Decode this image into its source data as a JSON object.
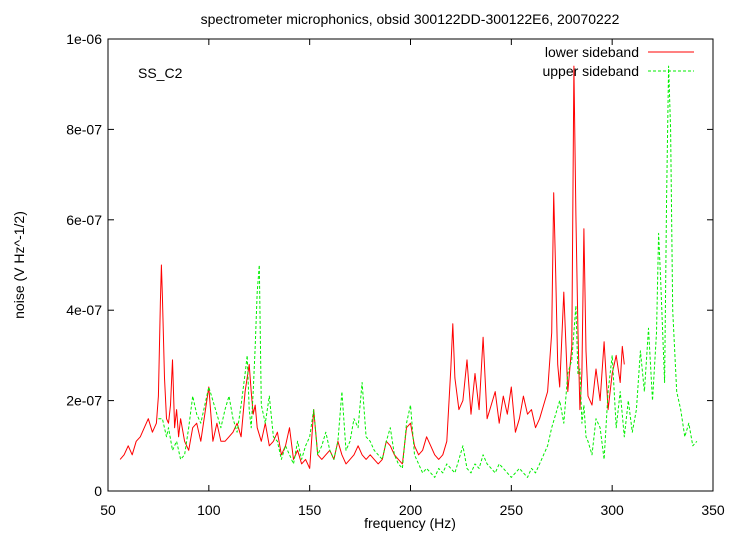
{
  "chart_data": {
    "type": "line",
    "title": "spectrometer microphonics, obsid 300122DD-300122E6, 20070222",
    "annotation": "SS_C2",
    "xlabel": "frequency (Hz)",
    "ylabel": "noise (V Hz^-1/2)",
    "xlim": [
      50,
      350
    ],
    "ylim": [
      0,
      1e-06
    ],
    "x_ticks": [
      50,
      100,
      150,
      200,
      250,
      300,
      350
    ],
    "x_tick_labels": [
      "50",
      "100",
      "150",
      "200",
      "250",
      "300",
      "350"
    ],
    "y_ticks": [
      0,
      2e-07,
      4e-07,
      6e-07,
      8e-07,
      1e-06
    ],
    "y_tick_labels": [
      "0",
      "2e-07",
      "4e-07",
      "6e-07",
      "8e-07",
      "1e-06"
    ],
    "grid": false,
    "legend_position": "top-right",
    "series": [
      {
        "name": "lower sideband",
        "color": "#ff0000",
        "dash": "solid",
        "x": [
          56,
          58,
          60,
          62,
          64,
          66,
          68,
          70,
          72,
          74,
          75,
          76,
          76.5,
          77,
          78,
          79,
          80,
          81,
          82,
          83,
          84,
          85,
          86,
          88,
          90,
          92,
          94,
          96,
          98,
          100,
          102,
          104,
          106,
          108,
          110,
          112,
          114,
          116,
          118,
          120,
          121,
          122,
          123,
          124,
          126,
          128,
          130,
          132,
          134,
          136,
          138,
          140,
          142,
          144,
          146,
          148,
          150,
          152,
          154,
          156,
          158,
          160,
          162,
          164,
          166,
          168,
          170,
          172,
          174,
          176,
          178,
          180,
          182,
          184,
          186,
          188,
          190,
          192,
          194,
          196,
          198,
          200,
          202,
          204,
          206,
          208,
          210,
          212,
          214,
          216,
          218,
          220,
          221,
          222,
          224,
          226,
          228,
          230,
          232,
          234,
          236,
          238,
          240,
          242,
          244,
          246,
          248,
          250,
          252,
          254,
          256,
          258,
          260,
          262,
          264,
          266,
          268,
          270,
          271,
          272,
          273,
          274,
          276,
          278,
          280,
          281,
          282,
          283,
          284,
          285,
          286,
          287,
          288,
          290,
          292,
          294,
          296,
          298,
          300,
          302,
          304,
          305,
          306
        ],
        "y": [
          7e-08,
          8e-08,
          1e-07,
          8e-08,
          1.1e-07,
          1.2e-07,
          1.4e-07,
          1.6e-07,
          1.3e-07,
          1.5e-07,
          2.1e-07,
          4.2e-07,
          5e-07,
          4.3e-07,
          2.5e-07,
          1.6e-07,
          1.5e-07,
          1.9e-07,
          2.9e-07,
          1.4e-07,
          1.8e-07,
          1.2e-07,
          1.6e-07,
          1.1e-07,
          9e-08,
          1.4e-07,
          1.5e-07,
          1.1e-07,
          1.7e-07,
          2.3e-07,
          1.1e-07,
          1.5e-07,
          1.1e-07,
          1.1e-07,
          1.2e-07,
          1.3e-07,
          1.5e-07,
          1.2e-07,
          2.2e-07,
          2.8e-07,
          2.2e-07,
          1.7e-07,
          1.9e-07,
          1.4e-07,
          1.1e-07,
          1.5e-07,
          1e-07,
          1.1e-07,
          1.3e-07,
          8e-08,
          1e-07,
          1.4e-07,
          7e-08,
          9e-08,
          6e-08,
          7e-08,
          5e-08,
          1.8e-07,
          8e-08,
          7e-08,
          8e-08,
          9e-08,
          7e-08,
          1.1e-07,
          8e-08,
          6e-08,
          7e-08,
          8e-08,
          1e-07,
          8e-08,
          7e-08,
          8e-08,
          7e-08,
          6e-08,
          7e-08,
          1.1e-07,
          1e-07,
          8e-08,
          7e-08,
          6e-08,
          1.4e-07,
          1.5e-07,
          1e-07,
          8e-08,
          9e-08,
          1.2e-07,
          1e-07,
          8e-08,
          7e-08,
          8e-08,
          1.1e-07,
          2.7e-07,
          3.7e-07,
          2.5e-07,
          1.8e-07,
          2e-07,
          2.9e-07,
          1.7e-07,
          2.6e-07,
          1.8e-07,
          3.4e-07,
          1.6e-07,
          1.9e-07,
          2.2e-07,
          1.5e-07,
          2.1e-07,
          1.7e-07,
          2.3e-07,
          1.3e-07,
          1.6e-07,
          2.1e-07,
          1.7e-07,
          1.8e-07,
          1.4e-07,
          1.6e-07,
          1.9e-07,
          2.2e-07,
          3.5e-07,
          6.6e-07,
          4.8e-07,
          2.8e-07,
          2.3e-07,
          4.4e-07,
          2.2e-07,
          3.2e-07,
          9.4e-07,
          6.1e-07,
          3.6e-07,
          1.8e-07,
          2.6e-07,
          5.8e-07,
          3.1e-07,
          2.1e-07,
          1.9e-07,
          2.7e-07,
          2e-07,
          3.3e-07,
          1.8e-07,
          2.6e-07,
          3e-07,
          2.4e-07,
          3.2e-07,
          2.8e-07
        ]
      },
      {
        "name": "upper sideband",
        "color": "#00ee00",
        "dash": "dashed",
        "x": [
          75,
          77,
          79,
          80,
          82,
          84,
          86,
          88,
          90,
          92,
          94,
          96,
          98,
          100,
          102,
          104,
          106,
          108,
          110,
          112,
          114,
          116,
          118,
          119,
          120,
          121,
          122,
          123,
          124,
          125,
          126,
          128,
          130,
          132,
          134,
          136,
          138,
          140,
          142,
          144,
          146,
          148,
          150,
          152,
          154,
          156,
          158,
          160,
          162,
          164,
          166,
          168,
          170,
          172,
          174,
          176,
          178,
          180,
          182,
          184,
          186,
          188,
          190,
          192,
          194,
          196,
          198,
          200,
          202,
          204,
          206,
          208,
          210,
          212,
          214,
          216,
          218,
          220,
          222,
          224,
          226,
          228,
          230,
          232,
          234,
          236,
          238,
          240,
          242,
          244,
          246,
          248,
          250,
          252,
          254,
          256,
          258,
          260,
          262,
          264,
          266,
          268,
          270,
          272,
          274,
          276,
          278,
          280,
          282,
          283,
          284,
          285,
          286,
          287,
          288,
          290,
          292,
          294,
          296,
          298,
          300,
          302,
          304,
          306,
          308,
          310,
          312,
          314,
          316,
          318,
          320,
          322,
          323,
          324,
          326,
          327,
          328,
          329,
          330,
          332,
          334,
          336,
          338,
          340,
          342
        ],
        "y": [
          1.6e-07,
          1.6e-07,
          1.2e-07,
          1.4e-07,
          9e-08,
          1.1e-07,
          7e-08,
          8e-08,
          1.4e-07,
          2.1e-07,
          1.7e-07,
          1.5e-07,
          1.9e-07,
          2.3e-07,
          2e-07,
          1.7e-07,
          1.4e-07,
          1.8e-07,
          2.1e-07,
          1.6e-07,
          1.3e-07,
          1.9e-07,
          2.6e-07,
          3e-07,
          1.8e-07,
          1.4e-07,
          2.2e-07,
          3.2e-07,
          4.4e-07,
          5e-07,
          1.9e-07,
          1.5e-07,
          2.1e-07,
          1.2e-07,
          1.1e-07,
          7e-08,
          1e-07,
          8e-08,
          6e-08,
          1.1e-07,
          7e-08,
          1e-07,
          1.2e-07,
          1.8e-07,
          8e-08,
          1e-07,
          1.3e-07,
          9e-08,
          7e-08,
          1.1e-07,
          2.2e-07,
          9e-08,
          1.1e-07,
          1.6e-07,
          1.4e-07,
          2.4e-07,
          1.2e-07,
          1.1e-07,
          9e-08,
          8e-08,
          7e-08,
          1.1e-07,
          1.4e-07,
          8e-08,
          6e-08,
          5e-08,
          1.5e-07,
          1.9e-07,
          8e-08,
          6e-08,
          4e-08,
          5e-08,
          4e-08,
          3e-08,
          5e-08,
          4e-08,
          6e-08,
          5e-08,
          4e-08,
          7e-08,
          1e-07,
          5e-08,
          4e-08,
          6e-08,
          5e-08,
          8e-08,
          6e-08,
          5e-08,
          4e-08,
          6e-08,
          5e-08,
          4e-08,
          3e-08,
          4e-08,
          5e-08,
          4e-08,
          3e-08,
          5e-08,
          4e-08,
          6e-08,
          8e-08,
          1e-07,
          1.4e-07,
          1.7e-07,
          2e-07,
          1.5e-07,
          2.6e-07,
          2.9e-07,
          4.1e-07,
          2.6e-07,
          2.7e-07,
          1.5e-07,
          1.9e-07,
          1.2e-07,
          1.1e-07,
          8e-08,
          1.6e-07,
          1.4e-07,
          7e-08,
          2.2e-07,
          3e-07,
          1.4e-07,
          2.2e-07,
          1.2e-07,
          2e-07,
          1.3e-07,
          1.8e-07,
          3.1e-07,
          2.2e-07,
          3.6e-07,
          2e-07,
          3.5e-07,
          5.7e-07,
          4.7e-07,
          2.4e-07,
          6.5e-07,
          9.4e-07,
          8e-07,
          4e-07,
          2.2e-07,
          1.8e-07,
          1.2e-07,
          1.5e-07,
          1e-07,
          1.1e-07
        ]
      }
    ]
  }
}
